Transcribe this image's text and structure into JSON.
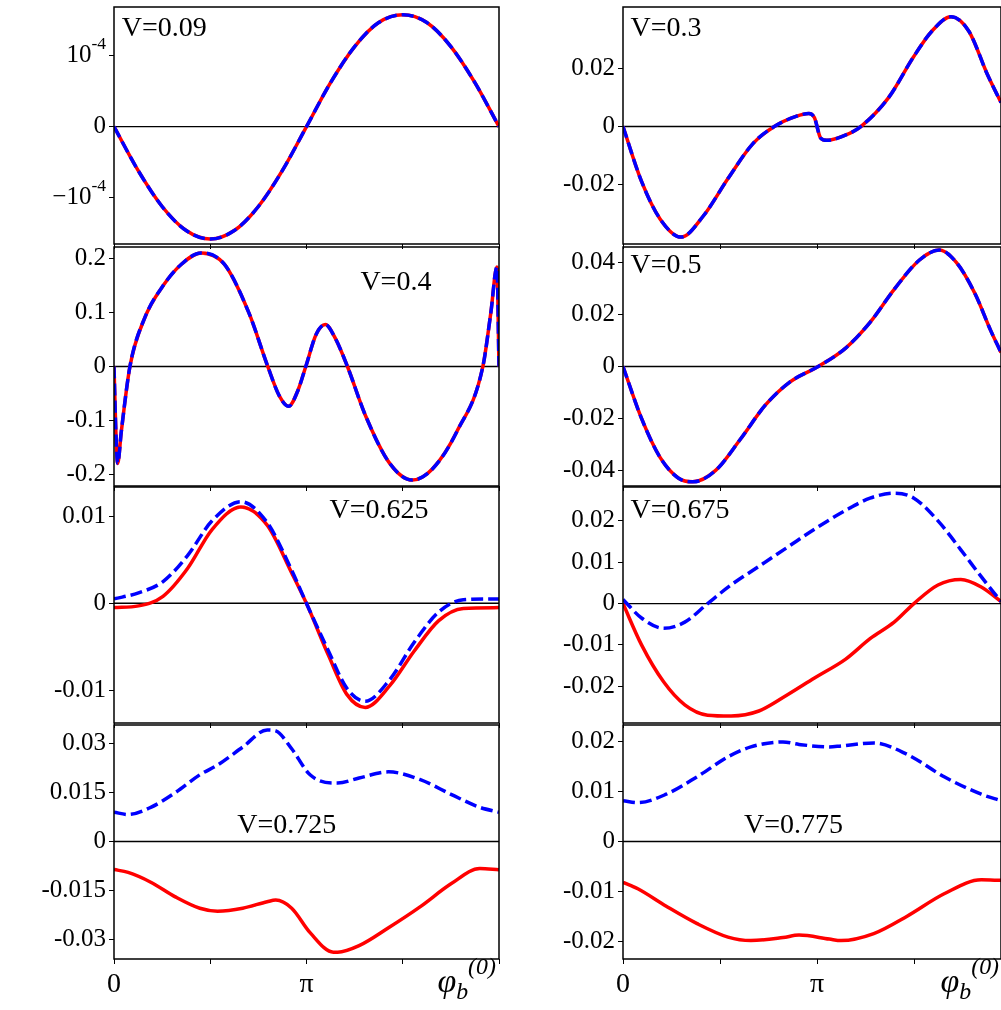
{
  "chart_data": [
    {
      "type": "line",
      "marker": "none",
      "tick_labels": "y",
      "annotations": [
        "V=0.09"
      ],
      "x": [
        0,
        0.393,
        0.785,
        1.178,
        1.571,
        1.963,
        2.356,
        2.749,
        3.142,
        3.534,
        3.927,
        4.32,
        4.712,
        5.105,
        5.498,
        5.89,
        6.283
      ],
      "series": [
        {
          "color": "#ff0000",
          "line_style": "solid",
          "values": [
            0,
            -6.2e-05,
            -0.000113,
            -0.000147,
            -0.000159,
            -0.000147,
            -0.000113,
            -6.2e-05,
            0,
            6.2e-05,
            0.000113,
            0.000147,
            0.000158,
            0.000147,
            0.000113,
            6.2e-05,
            0
          ]
        },
        {
          "color": "#0000ff",
          "line_style": "dashed",
          "values": [
            0,
            -6.2e-05,
            -0.000113,
            -0.000147,
            -0.000159,
            -0.000147,
            -0.000113,
            -6.2e-05,
            0,
            6.2e-05,
            0.000113,
            0.000147,
            0.000158,
            0.000147,
            0.000113,
            6.2e-05,
            0
          ]
        }
      ],
      "xlim": [
        0,
        6.2832
      ],
      "xticks": [
        {
          "value": 0,
          "label": null
        },
        {
          "value": 1.5708,
          "label": null
        },
        {
          "value": 3.1416,
          "label": null
        },
        {
          "value": 4.7124,
          "label": null
        },
        {
          "value": 6.2832,
          "label": null
        }
      ],
      "ylim": [
        -0.000166,
        0.000169
      ],
      "yticks": [
        {
          "value": -0.0001,
          "label": "−10$^{-4}$"
        },
        0,
        {
          "value": 0.0001,
          "label": "10$^{-4}$"
        }
      ],
      "ref_lines": [
        {
          "axis": "y",
          "value": 0,
          "color": "#000000"
        }
      ]
    },
    {
      "type": "line",
      "marker": "none",
      "tick_labels": "y",
      "annotations": [
        "V=0.3"
      ],
      "x": [
        0,
        0.3,
        0.6,
        0.94,
        1.3,
        1.7,
        2.1,
        2.45,
        2.8,
        3.01,
        3.1,
        3.2,
        3.3,
        3.6,
        3.85,
        4.3,
        4.7,
        5.0,
        5.31,
        5.6,
        5.9,
        6.12
      ],
      "series": [
        {
          "color": "#ff0000",
          "line_style": "solid",
          "values": [
            0,
            -0.019,
            -0.032,
            -0.0383,
            -0.031,
            -0.018,
            -0.006,
            0,
            0.0035,
            0.0045,
            0.003,
            -0.004,
            -0.0048,
            -0.003,
            0,
            0.01,
            0.024,
            0.033,
            0.038,
            0.033,
            0.018,
            0.0083
          ]
        },
        {
          "color": "#0000ff",
          "line_style": "dashed",
          "values": [
            0,
            -0.019,
            -0.032,
            -0.0383,
            -0.031,
            -0.018,
            -0.006,
            0,
            0.0035,
            0.0045,
            0.003,
            -0.004,
            -0.0048,
            -0.003,
            0,
            0.01,
            0.024,
            0.033,
            0.038,
            0.033,
            0.018,
            0.0083
          ]
        }
      ],
      "xlim": [
        0,
        6.12
      ],
      "xticks": [
        {
          "value": 0,
          "label": null
        },
        {
          "value": 1.5708,
          "label": null
        },
        {
          "value": 3.1416,
          "label": null
        },
        {
          "value": 4.7124,
          "label": null
        }
      ],
      "ylim": [
        -0.0407,
        0.0414
      ],
      "yticks": [
        -0.02,
        0,
        0.02
      ],
      "ref_lines": [
        {
          "axis": "y",
          "value": 0,
          "color": "#000000"
        }
      ]
    },
    {
      "type": "line",
      "marker": "none",
      "tick_labels": "y",
      "annotations": [
        "V=0.4"
      ],
      "x": [
        0,
        0.03,
        0.06,
        0.12,
        0.26,
        0.5,
        0.8,
        1.1,
        1.42,
        1.8,
        2.2,
        2.51,
        2.7,
        2.85,
        3.0,
        3.13,
        3.3,
        3.45,
        3.6,
        3.81,
        4.1,
        4.5,
        4.87,
        5.2,
        5.6,
        6.02,
        6.15,
        6.25,
        6.283
      ],
      "series": [
        {
          "color": "#ff0000",
          "line_style": "solid",
          "values": [
            0,
            -0.12,
            -0.18,
            -0.12,
            0,
            0.09,
            0.15,
            0.19,
            0.211,
            0.19,
            0.1,
            0,
            -0.055,
            -0.074,
            -0.045,
            0,
            0.06,
            0.078,
            0.055,
            0,
            -0.09,
            -0.18,
            -0.211,
            -0.19,
            -0.12,
            0,
            0.1,
            0.185,
            0
          ]
        },
        {
          "color": "#0000ff",
          "line_style": "dashed",
          "values": [
            0,
            -0.12,
            -0.18,
            -0.12,
            0,
            0.09,
            0.15,
            0.19,
            0.211,
            0.19,
            0.1,
            0,
            -0.055,
            -0.074,
            -0.045,
            0,
            0.06,
            0.078,
            0.055,
            0,
            -0.09,
            -0.18,
            -0.211,
            -0.19,
            -0.12,
            0,
            0.1,
            0.185,
            0
          ]
        }
      ],
      "xlim": [
        0,
        6.2832
      ],
      "xticks": [
        {
          "value": 0,
          "label": null
        },
        {
          "value": 1.5708,
          "label": null
        },
        {
          "value": 3.1416,
          "label": null
        },
        {
          "value": 4.7124,
          "label": null
        },
        {
          "value": 6.2832,
          "label": null
        }
      ],
      "ylim": [
        -0.222,
        0.222
      ],
      "yticks": [
        -0.2,
        -0.1,
        0,
        0.1,
        0.2
      ],
      "ref_lines": [
        {
          "axis": "y",
          "value": 0,
          "color": "#000000"
        }
      ]
    },
    {
      "type": "line",
      "marker": "none",
      "tick_labels": "y",
      "annotations": [
        "V=0.5"
      ],
      "x": [
        0,
        0.3,
        0.6,
        0.9,
        1.13,
        1.5,
        1.9,
        2.3,
        2.7,
        3.16,
        3.6,
        4.0,
        4.4,
        4.8,
        5.12,
        5.4,
        5.7,
        5.95,
        6.12
      ],
      "series": [
        {
          "color": "#ff0000",
          "line_style": "solid",
          "values": [
            0,
            -0.02,
            -0.035,
            -0.043,
            -0.0444,
            -0.04,
            -0.028,
            -0.015,
            -0.006,
            0,
            0.007,
            0.017,
            0.03,
            0.041,
            0.0448,
            0.04,
            0.028,
            0.014,
            0.0054
          ]
        },
        {
          "color": "#0000ff",
          "line_style": "dashed",
          "values": [
            0,
            -0.02,
            -0.035,
            -0.043,
            -0.0444,
            -0.04,
            -0.028,
            -0.015,
            -0.006,
            0,
            0.007,
            0.017,
            0.03,
            0.041,
            0.0448,
            0.04,
            0.028,
            0.014,
            0.0054
          ]
        }
      ],
      "xlim": [
        0,
        6.12
      ],
      "xticks": [
        {
          "value": 0,
          "label": null
        },
        {
          "value": 1.5708,
          "label": null
        },
        {
          "value": 3.1416,
          "label": null
        },
        {
          "value": 4.7124,
          "label": null
        }
      ],
      "ylim": [
        -0.046,
        0.046
      ],
      "yticks": [
        -0.04,
        -0.02,
        0,
        0.02,
        0.04
      ],
      "ref_lines": [
        {
          "axis": "y",
          "value": 0,
          "color": "#000000"
        }
      ]
    },
    {
      "type": "line",
      "marker": "none",
      "tick_labels": "y",
      "annotations": [
        "V=0.625"
      ],
      "x": [
        0,
        0.4,
        0.8,
        1.2,
        1.6,
        2.07,
        2.5,
        2.9,
        3.14,
        3.5,
        3.8,
        4.1,
        4.5,
        4.9,
        5.3,
        5.7,
        6.283
      ],
      "series": [
        {
          "color": "#ff0000",
          "line_style": "solid",
          "values": [
            -0.0005,
            -0.0003,
            0.0008,
            0.004,
            0.0085,
            0.0111,
            0.009,
            0.0035,
            0,
            -0.006,
            -0.0105,
            -0.012,
            -0.0095,
            -0.0055,
            -0.002,
            -0.0006,
            -0.0005
          ]
        },
        {
          "color": "#0000ff",
          "line_style": "dashed",
          "values": [
            0.0005,
            0.0012,
            0.0025,
            0.0055,
            0.0095,
            0.0117,
            0.0093,
            0.0038,
            0,
            -0.0055,
            -0.0098,
            -0.0113,
            -0.0088,
            -0.0045,
            -0.001,
            0.0004,
            0.0005
          ]
        }
      ],
      "xlim": [
        0,
        6.2832
      ],
      "xticks": [
        {
          "value": 0,
          "label": null
        },
        {
          "value": 1.5708,
          "label": null
        },
        {
          "value": 3.1416,
          "label": null
        },
        {
          "value": 4.7124,
          "label": null
        },
        {
          "value": 6.2832,
          "label": null
        }
      ],
      "ylim": [
        -0.0138,
        0.0134
      ],
      "yticks": [
        -0.01,
        0,
        0.01
      ],
      "ref_lines": [
        {
          "axis": "y",
          "value": 0,
          "color": "#000000"
        }
      ]
    },
    {
      "type": "line",
      "marker": "none",
      "tick_labels": "y",
      "annotations": [
        "V=0.675"
      ],
      "x": [
        0,
        0.3,
        0.66,
        1.0,
        1.37,
        1.75,
        2.2,
        2.67,
        3.1,
        3.6,
        4.0,
        4.39,
        4.71,
        5.1,
        5.47,
        5.8,
        6.12
      ],
      "series": [
        {
          "color": "#ff0000",
          "line_style": "solid",
          "values": [
            0,
            -0.01,
            -0.019,
            -0.0245,
            -0.027,
            -0.0272,
            -0.026,
            -0.022,
            -0.018,
            -0.0135,
            -0.0085,
            -0.0045,
            0,
            0.0045,
            0.0058,
            0.004,
            0.0005
          ]
        },
        {
          "color": "#0000ff",
          "line_style": "dashed",
          "values": [
            0.001,
            -0.0035,
            -0.006,
            -0.0045,
            0,
            0.0045,
            0.009,
            0.0137,
            0.018,
            0.0225,
            0.0255,
            0.0267,
            0.0255,
            0.02,
            0.013,
            0.0065,
            0.0005
          ]
        }
      ],
      "xlim": [
        0,
        6.12
      ],
      "xticks": [
        {
          "value": 0,
          "label": null
        },
        {
          "value": 1.5708,
          "label": null
        },
        {
          "value": 3.1416,
          "label": null
        },
        {
          "value": 4.7124,
          "label": null
        }
      ],
      "ylim": [
        -0.0289,
        0.0282
      ],
      "yticks": [
        -0.02,
        -0.01,
        0,
        0.01,
        0.02
      ],
      "ref_lines": [
        {
          "axis": "y",
          "value": 0,
          "color": "#000000"
        }
      ]
    },
    {
      "type": "line",
      "marker": "none",
      "annotations": [
        "V=0.725"
      ],
      "xlabel": "φ$_{b}$$^{(0)}$",
      "x": [
        0,
        0.23,
        0.6,
        1.0,
        1.4,
        1.69,
        2.1,
        2.5,
        2.64,
        2.9,
        3.2,
        3.58,
        3.65,
        4.0,
        4.48,
        5.0,
        5.5,
        5.97,
        6.283
      ],
      "series": [
        {
          "color": "#ff0000",
          "line_style": "solid",
          "values": [
            -0.0086,
            -0.0095,
            -0.0125,
            -0.017,
            -0.0205,
            -0.0214,
            -0.0205,
            -0.0185,
            -0.018,
            -0.0205,
            -0.028,
            -0.034,
            -0.034,
            -0.032,
            -0.0265,
            -0.02,
            -0.013,
            -0.0083,
            -0.0087
          ]
        },
        {
          "color": "#0000ff",
          "line_style": "dashed",
          "values": [
            0.009,
            0.0083,
            0.0105,
            0.015,
            0.0205,
            0.0235,
            0.029,
            0.0343,
            0.034,
            0.0285,
            0.0205,
            0.018,
            0.018,
            0.0195,
            0.0214,
            0.019,
            0.0145,
            0.0105,
            0.009
          ]
        }
      ],
      "xlim": [
        0,
        6.2832
      ],
      "xticks": [
        0,
        {
          "value": 1.5708,
          "label": null
        },
        {
          "value": 3.1416,
          "label": "π"
        },
        {
          "value": 4.7124,
          "label": null
        },
        {
          "value": 6.2832,
          "label": null
        }
      ],
      "ylim": [
        -0.0361,
        0.0358
      ],
      "yticks": [
        -0.03,
        -0.015,
        0,
        0.015,
        0.03
      ],
      "ref_lines": [
        {
          "axis": "y",
          "value": 0,
          "color": "#000000"
        }
      ]
    },
    {
      "type": "line",
      "marker": "none",
      "annotations": [
        "V=0.775"
      ],
      "xlabel": "φ$_{b}$$^{(0)}$",
      "x": [
        0,
        0.24,
        0.7,
        1.2,
        1.7,
        2.07,
        2.59,
        2.85,
        3.34,
        3.53,
        4.06,
        4.6,
        5.2,
        5.8,
        6.12
      ],
      "series": [
        {
          "color": "#ff0000",
          "line_style": "solid",
          "values": [
            -0.0082,
            -0.0095,
            -0.013,
            -0.0165,
            -0.0192,
            -0.0199,
            -0.0193,
            -0.0188,
            -0.0196,
            -0.0199,
            -0.0185,
            -0.015,
            -0.0105,
            -0.0077,
            -0.0078
          ]
        },
        {
          "color": "#0000ff",
          "line_style": "dashed",
          "values": [
            0.0082,
            0.0078,
            0.0095,
            0.013,
            0.017,
            0.019,
            0.02,
            0.0195,
            0.019,
            0.0192,
            0.0198,
            0.0175,
            0.013,
            0.0095,
            0.0082
          ]
        }
      ],
      "xlim": [
        0,
        6.12
      ],
      "xticks": [
        0,
        {
          "value": 1.5708,
          "label": null
        },
        {
          "value": 3.1416,
          "label": "π"
        },
        {
          "value": 4.7124,
          "label": null
        }
      ],
      "ylim": [
        -0.0236,
        0.0234
      ],
      "yticks": [
        -0.02,
        -0.01,
        0,
        0.01,
        0.02
      ],
      "ref_lines": [
        {
          "axis": "y",
          "value": 0,
          "color": "#000000"
        }
      ]
    }
  ]
}
